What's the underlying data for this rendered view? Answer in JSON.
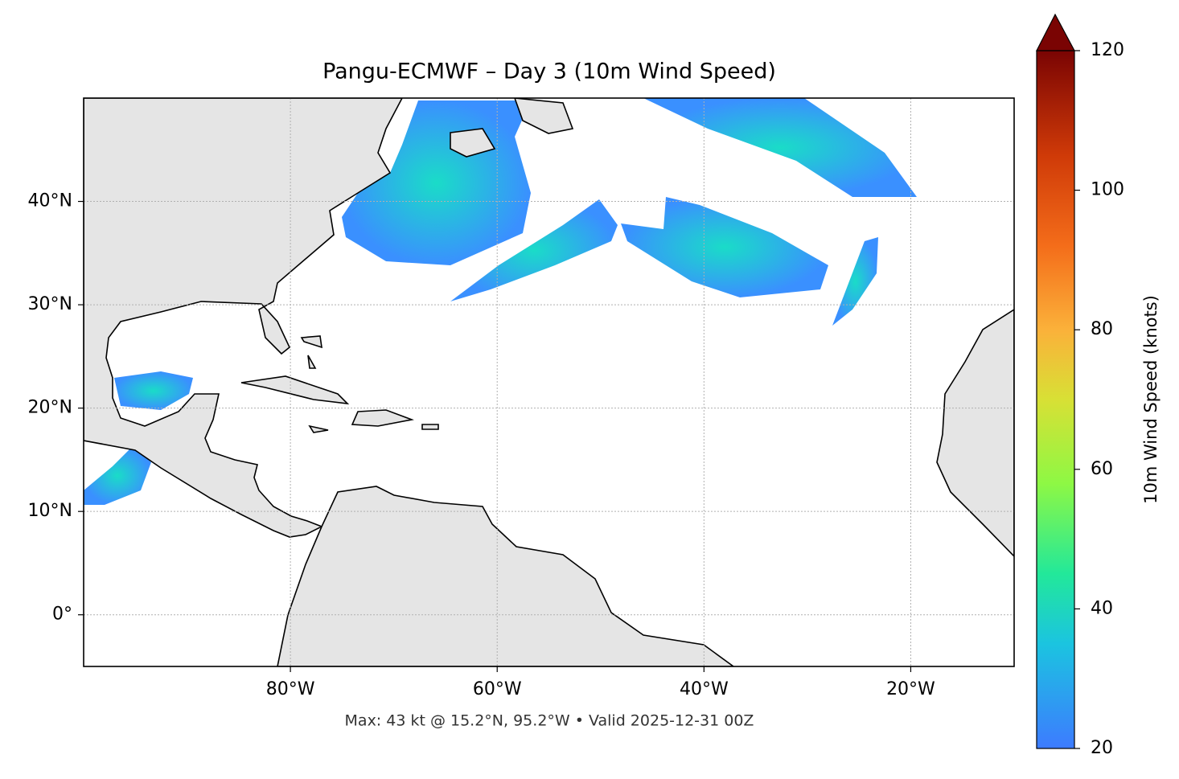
{
  "chart_data": {
    "type": "map",
    "title": "Pangu-ECMWF – Day 3 (10m Wind Speed)",
    "footer": "Max: 43 kt @ 15.2°N, 95.2°W • Valid 2025-12-31 00Z",
    "xlim": [
      -100,
      -10
    ],
    "ylim": [
      -5,
      50
    ],
    "xticks": [
      {
        "value": -80,
        "label": "80°W"
      },
      {
        "value": -60,
        "label": "60°W"
      },
      {
        "value": -40,
        "label": "40°W"
      },
      {
        "value": -20,
        "label": "20°W"
      }
    ],
    "yticks": [
      {
        "value": 0,
        "label": "0°"
      },
      {
        "value": 10,
        "label": "10°N"
      },
      {
        "value": 20,
        "label": "20°N"
      },
      {
        "value": 30,
        "label": "30°N"
      },
      {
        "value": 40,
        "label": "40°N"
      }
    ],
    "grid": true,
    "colorbar": {
      "label": "10m Wind Speed (knots)",
      "lim": [
        20,
        120
      ],
      "ticks": [
        20,
        40,
        60,
        80,
        100,
        120
      ]
    }
  }
}
